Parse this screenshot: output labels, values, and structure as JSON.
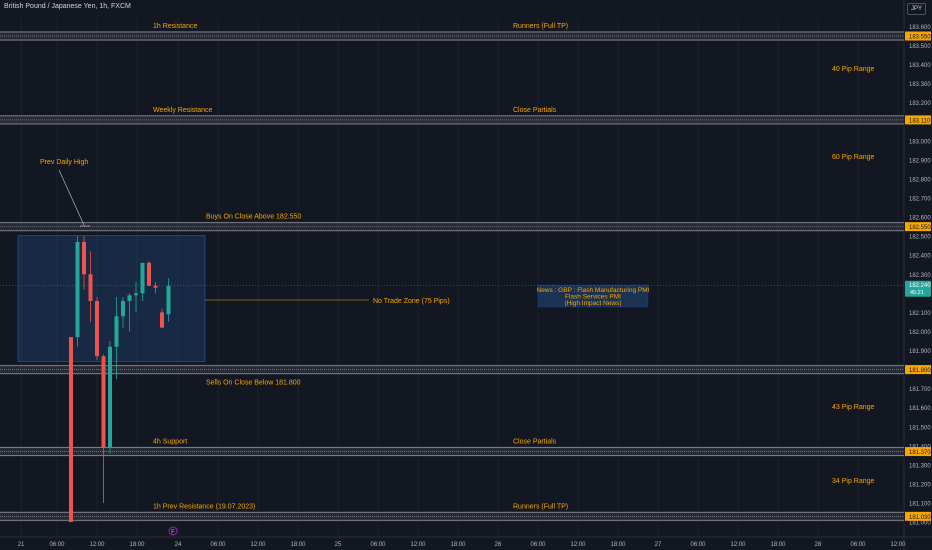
{
  "chart_header": {
    "symbol_title": "British Pound / Japanese Yen, 1h, FXCM",
    "currency": "JPY"
  },
  "chart_data": {
    "type": "candlestick",
    "symbol": "British Pound / Japanese Yen",
    "interval": "1h",
    "source": "FXCM",
    "ylim": [
      181.0,
      183.65
    ],
    "y_ticks": [
      "183.600",
      "183.500",
      "183.400",
      "183.300",
      "183.200",
      "183.100",
      "183.000",
      "182.900",
      "182.800",
      "182.700",
      "182.600",
      "182.500",
      "182.400",
      "182.300",
      "182.200",
      "182.100",
      "182.000",
      "181.900",
      "181.800",
      "181.700",
      "181.600",
      "181.500",
      "181.400",
      "181.300",
      "181.200",
      "181.100",
      "181.000"
    ],
    "x_ticks": [
      "21",
      "06:00",
      "12:00",
      "18:00",
      "24",
      "06:00",
      "12:00",
      "18:00",
      "25",
      "06:00",
      "12:00",
      "18:00",
      "26",
      "06:00",
      "12:00",
      "18:00",
      "27",
      "06:00",
      "12:00",
      "18:00",
      "28",
      "06:00",
      "12:00"
    ],
    "current_price": {
      "value": "182.240",
      "countdown": "45:21"
    },
    "level_badges": [
      "183.550",
      "183.110",
      "182.550",
      "181.800",
      "181.370",
      "181.030"
    ],
    "candles": [
      {
        "o": 181.97,
        "h": 181.97,
        "l": 181.0,
        "c": 181.0
      },
      {
        "o": 181.97,
        "h": 182.5,
        "l": 181.92,
        "c": 182.47
      },
      {
        "o": 182.47,
        "h": 182.5,
        "l": 182.22,
        "c": 182.3
      },
      {
        "o": 182.3,
        "h": 182.42,
        "l": 182.05,
        "c": 182.16
      },
      {
        "o": 182.16,
        "h": 182.18,
        "l": 181.85,
        "c": 181.87
      },
      {
        "o": 181.87,
        "h": 181.88,
        "l": 181.1,
        "c": 181.39
      },
      {
        "o": 181.39,
        "h": 181.95,
        "l": 181.36,
        "c": 181.92
      },
      {
        "o": 181.92,
        "h": 182.18,
        "l": 181.75,
        "c": 182.08
      },
      {
        "o": 182.08,
        "h": 182.18,
        "l": 182.02,
        "c": 182.16
      },
      {
        "o": 182.16,
        "h": 182.2,
        "l": 182.0,
        "c": 182.19
      },
      {
        "o": 182.19,
        "h": 182.26,
        "l": 182.1,
        "c": 182.2
      },
      {
        "o": 182.2,
        "h": 182.36,
        "l": 182.16,
        "c": 182.36
      },
      {
        "o": 182.36,
        "h": 182.37,
        "l": 182.24,
        "c": 182.24
      },
      {
        "o": 182.24,
        "h": 182.26,
        "l": 182.2,
        "c": 182.23
      },
      {
        "o": 182.1,
        "h": 182.12,
        "l": 182.02,
        "c": 182.02
      },
      {
        "o": 182.09,
        "h": 182.28,
        "l": 182.05,
        "c": 182.24
      }
    ],
    "horizontal_levels": [
      {
        "price": 183.55,
        "labels": [
          {
            "text": "1h Resistance",
            "pos": "left"
          },
          {
            "text": "Runners (Full TP)",
            "pos": "center"
          }
        ]
      },
      {
        "price": 183.11,
        "labels": [
          {
            "text": "Weekly Resistance",
            "pos": "left"
          },
          {
            "text": "Close Partials",
            "pos": "center"
          }
        ]
      },
      {
        "price": 182.55,
        "labels": [
          {
            "text": "Buys On Close Above 182.550",
            "pos": "center-left"
          }
        ]
      },
      {
        "price": 181.8,
        "labels": [
          {
            "text": "Sells On Close Below 181.800",
            "pos": "center-left-below"
          }
        ]
      },
      {
        "price": 181.37,
        "labels": [
          {
            "text": "4h Support",
            "pos": "left"
          },
          {
            "text": "Close Partials",
            "pos": "center"
          }
        ]
      },
      {
        "price": 181.03,
        "labels": [
          {
            "text": "1h Prev Resistance (19.07.2023)",
            "pos": "left"
          },
          {
            "text": "Runners (Full TP)",
            "pos": "center"
          }
        ]
      }
    ],
    "range_labels": [
      "40 Pip Range",
      "60 Pip Range",
      "43 Pip Range",
      "34 Pip Range"
    ],
    "annotations": {
      "prev_daily_high": "Prev Daily High",
      "no_trade_zone": "No Trade Zone (75 Pips)",
      "news": [
        "News : GBP : Flash Manufacturing PMI",
        "Flash Services PMI",
        "(High Impact News)"
      ]
    },
    "event_marker": "F",
    "colors": {
      "background": "#131722",
      "up": "#26a69a",
      "down": "#ef5350",
      "level_label": "#f7a600",
      "zone_fill": "#1e3a5f",
      "zone_border": "#2962ff",
      "level_band": "#787b86",
      "price_badge": "#26a69a",
      "axis_text": "#b2b5be"
    }
  }
}
